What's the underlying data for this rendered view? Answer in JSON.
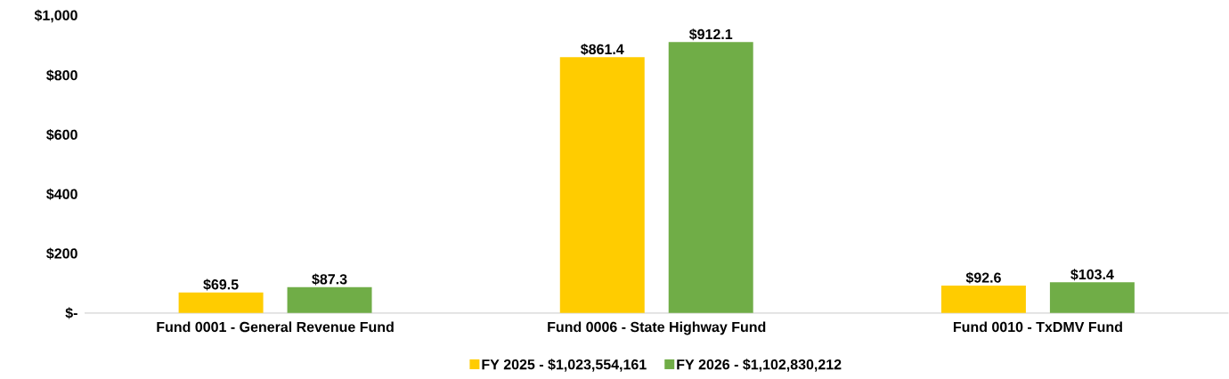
{
  "chart_data": {
    "type": "bar",
    "categories": [
      "Fund 0001 - General Revenue Fund",
      "Fund 0006 - State Highway Fund",
      "Fund 0010 - TxDMV Fund"
    ],
    "series": [
      {
        "name": "FY 2025 - $1,023,554,161",
        "color": "#ffcc00",
        "values": [
          69.5,
          861.4,
          92.6
        ],
        "value_labels": [
          "$69.5",
          "$861.4",
          "$92.6"
        ]
      },
      {
        "name": "FY 2026 - $1,102,830,212",
        "color": "#70ad47",
        "values": [
          87.3,
          912.1,
          103.4
        ],
        "value_labels": [
          "$87.3",
          "$912.1",
          "$103.4"
        ]
      }
    ],
    "ylim": [
      0,
      1000
    ],
    "yticks": [
      {
        "value": 0,
        "label": "$-"
      },
      {
        "value": 200,
        "label": "$200"
      },
      {
        "value": 400,
        "label": "$400"
      },
      {
        "value": 600,
        "label": "$600"
      },
      {
        "value": 800,
        "label": "$800"
      },
      {
        "value": 1000,
        "label": "$1,000"
      }
    ],
    "legend": "bottom"
  }
}
